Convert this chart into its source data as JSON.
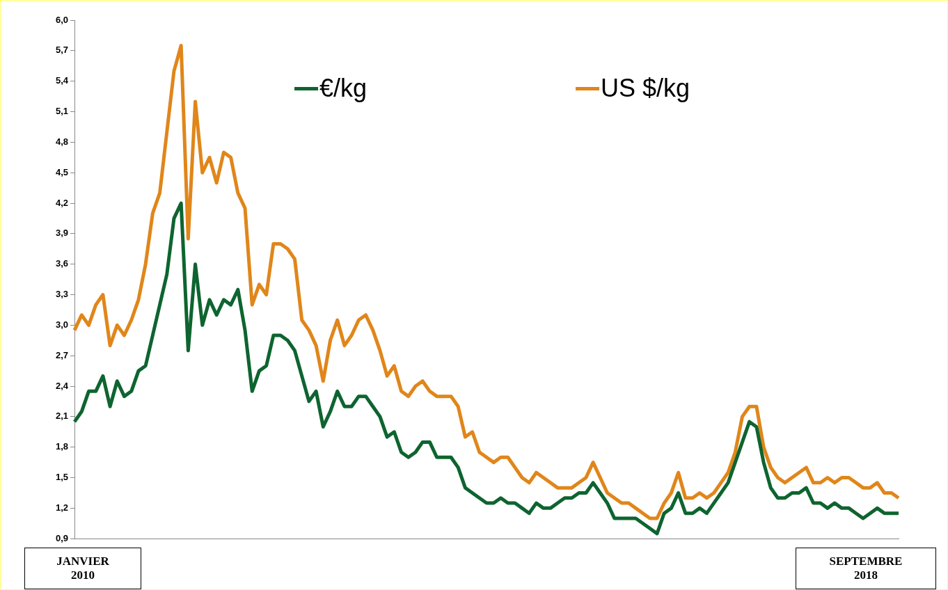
{
  "chart_data": {
    "type": "line",
    "categories": [
      null,
      null,
      null,
      null,
      null,
      null,
      null,
      null,
      null,
      null,
      null,
      null,
      null,
      null,
      null,
      null,
      null,
      null,
      null,
      null,
      null,
      null,
      null,
      null,
      null,
      null,
      null,
      null,
      null,
      null,
      null,
      null,
      null,
      null,
      null,
      null,
      null,
      null,
      null,
      null,
      null,
      null,
      null,
      null,
      null,
      null,
      null,
      null,
      null,
      null,
      null,
      null,
      null,
      null,
      null,
      null,
      null,
      null,
      null,
      null,
      null,
      null,
      null,
      null,
      null,
      null,
      null,
      null,
      null,
      null,
      null,
      null,
      null,
      null,
      null,
      null,
      null,
      null,
      null,
      null,
      null,
      null,
      null,
      null,
      null,
      null,
      null,
      null,
      null,
      null,
      null,
      null,
      null,
      null,
      null,
      null,
      null,
      null,
      null,
      null,
      null,
      null,
      null,
      null,
      null,
      null,
      null,
      null,
      null,
      null,
      null,
      null,
      null,
      null,
      null,
      null,
      null
    ],
    "series": [
      {
        "name": "€/kg",
        "color": "#0e6430",
        "values": [
          2.05,
          2.15,
          2.35,
          2.35,
          2.5,
          2.2,
          2.45,
          2.3,
          2.35,
          2.55,
          2.6,
          2.9,
          3.2,
          3.5,
          4.05,
          4.2,
          2.75,
          3.6,
          3.0,
          3.25,
          3.1,
          3.25,
          3.2,
          3.35,
          2.95,
          2.35,
          2.55,
          2.6,
          2.9,
          2.9,
          2.85,
          2.75,
          2.5,
          2.25,
          2.35,
          2.0,
          2.15,
          2.35,
          2.2,
          2.2,
          2.3,
          2.3,
          2.2,
          2.1,
          1.9,
          1.95,
          1.75,
          1.7,
          1.75,
          1.85,
          1.85,
          1.7,
          1.7,
          1.7,
          1.6,
          1.4,
          1.35,
          1.3,
          1.25,
          1.25,
          1.3,
          1.25,
          1.25,
          1.2,
          1.15,
          1.25,
          1.2,
          1.2,
          1.25,
          1.3,
          1.3,
          1.35,
          1.35,
          1.45,
          1.35,
          1.25,
          1.1,
          1.1,
          1.1,
          1.1,
          1.05,
          1.0,
          0.95,
          1.15,
          1.2,
          1.35,
          1.15,
          1.15,
          1.2,
          1.15,
          1.25,
          1.35,
          1.45,
          1.65,
          1.85,
          2.05,
          2.0,
          1.65,
          1.4,
          1.3,
          1.3,
          1.35,
          1.35,
          1.4,
          1.25,
          1.25,
          1.2,
          1.25,
          1.2,
          1.2,
          1.15,
          1.1,
          1.15,
          1.2,
          1.15,
          1.15,
          1.15
        ]
      },
      {
        "name": "US $/kg",
        "color": "#e0861a",
        "values": [
          2.95,
          3.1,
          3.0,
          3.2,
          3.3,
          2.8,
          3.0,
          2.9,
          3.05,
          3.25,
          3.6,
          4.1,
          4.3,
          4.9,
          5.5,
          5.75,
          3.85,
          5.2,
          4.5,
          4.65,
          4.4,
          4.7,
          4.65,
          4.3,
          4.15,
          3.2,
          3.4,
          3.3,
          3.8,
          3.8,
          3.75,
          3.65,
          3.05,
          2.95,
          2.8,
          2.45,
          2.85,
          3.05,
          2.8,
          2.9,
          3.05,
          3.1,
          2.95,
          2.75,
          2.5,
          2.6,
          2.35,
          2.3,
          2.4,
          2.45,
          2.35,
          2.3,
          2.3,
          2.3,
          2.2,
          1.9,
          1.95,
          1.75,
          1.7,
          1.65,
          1.7,
          1.7,
          1.6,
          1.5,
          1.45,
          1.55,
          1.5,
          1.45,
          1.4,
          1.4,
          1.4,
          1.45,
          1.5,
          1.65,
          1.5,
          1.35,
          1.3,
          1.25,
          1.25,
          1.2,
          1.15,
          1.1,
          1.1,
          1.25,
          1.35,
          1.55,
          1.3,
          1.3,
          1.35,
          1.3,
          1.35,
          1.45,
          1.55,
          1.75,
          2.1,
          2.2,
          2.2,
          1.8,
          1.6,
          1.5,
          1.45,
          1.5,
          1.55,
          1.6,
          1.45,
          1.45,
          1.5,
          1.45,
          1.5,
          1.5,
          1.45,
          1.4,
          1.4,
          1.45,
          1.35,
          1.35,
          1.3
        ]
      }
    ],
    "ylim": [
      0.9,
      6.0
    ],
    "yticks": [
      {
        "value": 0.9,
        "label": "0,9"
      },
      {
        "value": 1.2,
        "label": "1,2"
      },
      {
        "value": 1.5,
        "label": "1,5"
      },
      {
        "value": 1.8,
        "label": "1,8"
      },
      {
        "value": 2.1,
        "label": "2,1"
      },
      {
        "value": 2.4,
        "label": "2,4"
      },
      {
        "value": 2.7,
        "label": "2,7"
      },
      {
        "value": 3.0,
        "label": "3,0"
      },
      {
        "value": 3.3,
        "label": "3,3"
      },
      {
        "value": 3.6,
        "label": "3,6"
      },
      {
        "value": 3.9,
        "label": "3,9"
      },
      {
        "value": 4.2,
        "label": "4,2"
      },
      {
        "value": 4.5,
        "label": "4,5"
      },
      {
        "value": 4.8,
        "label": "4,8"
      },
      {
        "value": 5.1,
        "label": "5,1"
      },
      {
        "value": 5.4,
        "label": "5,4"
      },
      {
        "value": 5.7,
        "label": "5,7"
      },
      {
        "value": 6.0,
        "label": "6,0"
      }
    ],
    "grid": false,
    "legend": "top",
    "marker": "none",
    "line_style": "solid",
    "annotations": [
      "JANVIER 2010",
      "SEPTEMBRE 2018"
    ]
  }
}
